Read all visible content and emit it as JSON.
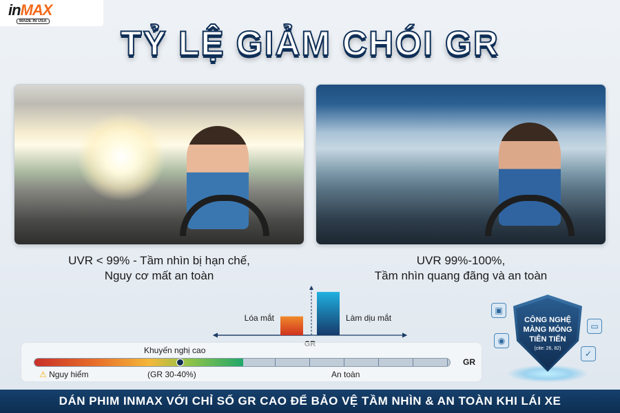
{
  "logo": {
    "brand_in": "in",
    "brand_max": "MAX",
    "tagline": "MADE IN USA"
  },
  "title": "TỶ LỆ GIẢM CHÓI GR",
  "left_panel": {
    "caption_line1": "UVR < 99% - Tầm nhìn bị hạn chế,",
    "caption_line2": "Nguy cơ mất an toàn"
  },
  "right_panel": {
    "caption_line1": "UVR 99%-100%,",
    "caption_line2": "Tầm nhìn quang đãng và an toàn"
  },
  "chart_data": {
    "type": "bar",
    "categories": [
      "Lóa mắt",
      "Làm dịu mắt"
    ],
    "values": [
      27,
      62
    ],
    "xlabel": "GR",
    "colors": [
      "#e8502a",
      "#1a7fc0"
    ]
  },
  "gauge": {
    "top_label": "Khuyến nghị cao",
    "axis_label": "GR",
    "danger_label": "Nguy hiểm",
    "range_label": "(GR 30-40%)",
    "safe_label": "An toàn",
    "marker_position_percent": 35,
    "colored_fraction_percent": 50
  },
  "badge": {
    "line1": "CÔNG NGHỆ",
    "line2": "MÀNG MỎNG",
    "line3": "TIÊN TIẾN",
    "note": "(cite: 26, 82)"
  },
  "footer": "DÁN PHIM INMAX VỚI CHỈ SỐ GR CAO ĐỂ BẢO VỆ TẦM NHÌN & AN TOÀN KHI LÁI XE"
}
